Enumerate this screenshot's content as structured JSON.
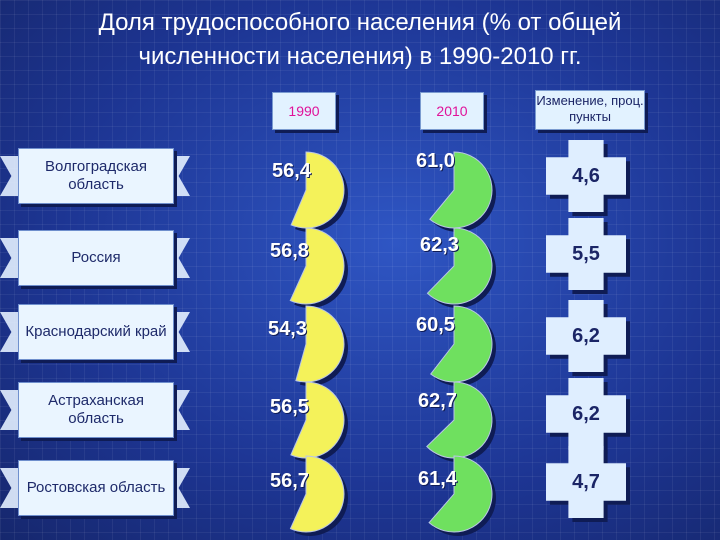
{
  "title": {
    "line1": "Доля трудоспособного населения (% от общей",
    "line2": "численности населения) в 1990-2010 гг."
  },
  "headers": {
    "y1990": "1990",
    "y2010": "2010",
    "change": "Изменение, проц. пункты"
  },
  "colors": {
    "pie_1990": "#f4f25a",
    "pie_2010": "#6fe05f",
    "year_header_text": "#e0129a",
    "value_text": "#ffffff",
    "background": "#1f3a9a"
  },
  "chart_data": {
    "type": "table",
    "title": "Доля трудоспособного населения (% от общей численности населения) в 1990-2010 гг.",
    "columns": [
      "1990",
      "2010",
      "Изменение, проц. пункты"
    ],
    "rows": [
      {
        "region": "Волгоградская область",
        "v1990": 56.4,
        "v2010": 61.0,
        "change": 4.6,
        "label1990": "56,4",
        "label2010": "61,0",
        "label_change": "4,6"
      },
      {
        "region": "Россия",
        "v1990": 56.8,
        "v2010": 62.3,
        "change": 5.5,
        "label1990": "56,8",
        "label2010": "62,3",
        "label_change": "5,5"
      },
      {
        "region": "Краснодарский край",
        "v1990": 54.3,
        "v2010": 60.5,
        "change": 6.2,
        "label1990": "54,3",
        "label2010": "60,5",
        "label_change": "6,2"
      },
      {
        "region": "Астраханская область",
        "v1990": 56.5,
        "v2010": 62.7,
        "change": 6.2,
        "label1990": "56,5",
        "label2010": "62,7",
        "label_change": "6,2"
      },
      {
        "region": "Ростовская область",
        "v1990": 56.7,
        "v2010": 61.4,
        "change": 4.7,
        "label1990": "56,7",
        "label2010": "61,4",
        "label_change": "4,7"
      }
    ]
  }
}
